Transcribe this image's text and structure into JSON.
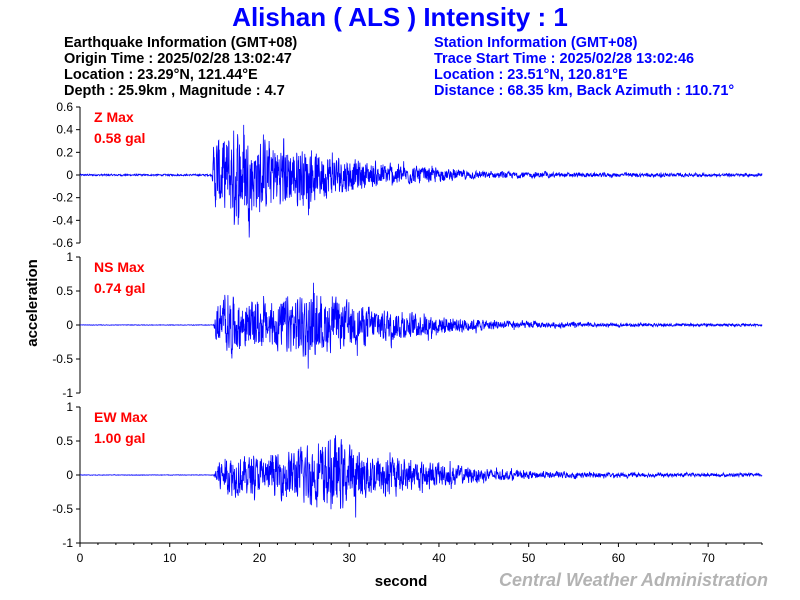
{
  "title": "Alishan ( ALS ) Intensity : 1",
  "earthquake": {
    "heading": "Earthquake Information (GMT+08)",
    "origin_time": "Origin Time : 2025/02/28 13:02:47",
    "location": "Location : 23.29°N, 121.44°E",
    "depth_magnitude": "Depth : 25.9km , Magnitude : 4.7"
  },
  "station": {
    "heading": "Station Information (GMT+08)",
    "trace_start": "Trace Start Time : 2025/02/28 13:02:46",
    "location": "Location : 23.51°N, 120.81°E",
    "distance": "Distance : 68.35 km, Back Azimuth : 110.71°"
  },
  "agency": "Central Weather Administration",
  "colors": {
    "trace": "#0000ff",
    "label": "#ff0000",
    "title": "#0000ff",
    "agency": "#b3b3b3"
  },
  "chart_data": {
    "type": "line",
    "xlabel": "second",
    "ylabel": "acceleration",
    "xlim": [
      0,
      76
    ],
    "x_ticks": [
      0,
      10,
      20,
      30,
      40,
      50,
      60,
      70
    ],
    "panels": [
      {
        "component": "Z",
        "max_label": "Z Max",
        "max_value": "0.58 gal",
        "ylim": [
          -0.6,
          0.6
        ],
        "y_ticks": [
          -0.6,
          -0.4,
          -0.2,
          0,
          0.2,
          0.4,
          0.6
        ],
        "y_tick_labels": [
          "-0.6",
          "-0.4",
          "-0.2",
          "0",
          "0.2",
          "0.4",
          "0.6"
        ],
        "onset_s": 14.8,
        "envelope": [
          [
            0,
            0.01
          ],
          [
            14.7,
            0.01
          ],
          [
            15,
            0.42
          ],
          [
            16,
            0.45
          ],
          [
            17.5,
            0.55
          ],
          [
            19,
            0.42
          ],
          [
            21,
            0.4
          ],
          [
            23,
            0.38
          ],
          [
            25,
            0.32
          ],
          [
            27,
            0.27
          ],
          [
            29,
            0.22
          ],
          [
            32,
            0.15
          ],
          [
            36,
            0.11
          ],
          [
            40,
            0.07
          ],
          [
            45,
            0.04
          ],
          [
            55,
            0.025
          ],
          [
            76,
            0.015
          ]
        ]
      },
      {
        "component": "NS",
        "max_label": "NS Max",
        "max_value": "0.74 gal",
        "ylim": [
          -1,
          1
        ],
        "y_ticks": [
          -1,
          -0.5,
          0,
          0.5,
          1
        ],
        "y_tick_labels": [
          "-1",
          "-0.5",
          "0",
          "0.5",
          "1"
        ],
        "onset_s": 15.0,
        "envelope": [
          [
            0,
            0.005
          ],
          [
            14.9,
            0.005
          ],
          [
            15.2,
            0.38
          ],
          [
            17,
            0.52
          ],
          [
            19,
            0.45
          ],
          [
            21,
            0.4
          ],
          [
            23,
            0.55
          ],
          [
            25,
            0.62
          ],
          [
            27,
            0.55
          ],
          [
            29,
            0.45
          ],
          [
            32,
            0.35
          ],
          [
            36,
            0.25
          ],
          [
            40,
            0.18
          ],
          [
            45,
            0.1
          ],
          [
            50,
            0.06
          ],
          [
            60,
            0.03
          ],
          [
            76,
            0.02
          ]
        ]
      },
      {
        "component": "EW",
        "max_label": "EW Max",
        "max_value": "1.00 gal",
        "ylim": [
          -1,
          1
        ],
        "y_ticks": [
          -1,
          -0.5,
          0,
          0.5,
          1
        ],
        "y_tick_labels": [
          "-1",
          "-0.5",
          "0",
          "0.5",
          "1"
        ],
        "onset_s": 15.0,
        "envelope": [
          [
            0,
            0.005
          ],
          [
            14.9,
            0.005
          ],
          [
            15.3,
            0.3
          ],
          [
            17,
            0.4
          ],
          [
            19,
            0.35
          ],
          [
            21,
            0.32
          ],
          [
            23,
            0.45
          ],
          [
            25,
            0.55
          ],
          [
            27,
            0.6
          ],
          [
            28.5,
            0.72
          ],
          [
            30,
            0.55
          ],
          [
            33,
            0.4
          ],
          [
            37,
            0.28
          ],
          [
            41,
            0.2
          ],
          [
            45,
            0.12
          ],
          [
            50,
            0.07
          ],
          [
            60,
            0.04
          ],
          [
            76,
            0.025
          ]
        ]
      }
    ]
  }
}
